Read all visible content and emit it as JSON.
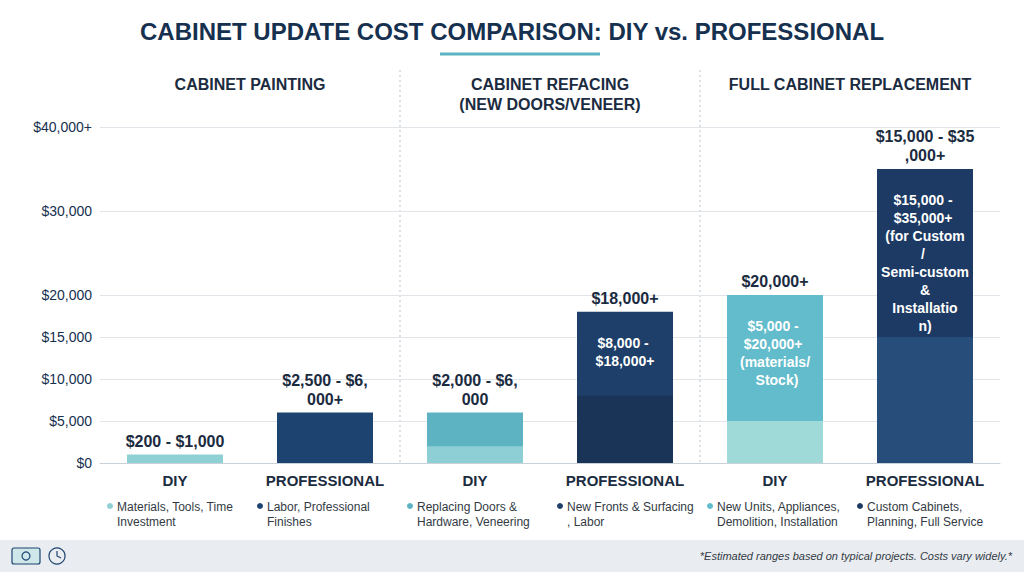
{
  "chart_data": {
    "type": "bar",
    "title": "CABINET UPDATE COST COMPARISON: DIY vs. PROFESSIONAL",
    "group_titles": [
      "CABINET PAINTING",
      "CABINET REFACING\n(NEW DOORS/VENEER)",
      "FULL CABINET REPLACEMENT"
    ],
    "categories": [
      "DIY",
      "PROFESSIONAL",
      "DIY",
      "PROFESSIONAL",
      "DIY",
      "PROFESSIONAL"
    ],
    "values": [
      1000,
      6000,
      6000,
      18000,
      20000,
      35000
    ],
    "value_labels": [
      "$200 - $1,000",
      "$2,500 - $6,000+",
      "$2,000 - $6,000",
      "$18,000+",
      "$20,000+",
      "$15,000 - $35,000+"
    ],
    "base_values": [
      200,
      2500,
      2000,
      8000,
      5000,
      15000
    ],
    "inner_labels": [
      null,
      null,
      null,
      "$8,000 - $18,000+",
      "$5,000 - $20,000+ (materials/ Stock)",
      "$15,000 - $35,000+ (for Custom/ Semi-custom & Installation)"
    ],
    "colors": [
      "#8fd0d4",
      "#1d4471",
      "#5db3c2",
      "#1e3f6a",
      "#62bccb",
      "#1c3a63"
    ],
    "base_colors": [
      "#8fd0d4",
      "#1d4471",
      "#8dcfd5",
      "#193456",
      "#9fdad9",
      "#274e7a"
    ],
    "notes": [
      "Materials, Tools, Time Investment",
      "Labor, Professional Finishes",
      "Replacing Doors & Hardware, Veneering",
      "New Fronts & Surfacing, Labor",
      "New Units, Appliances, Demolition, Installation",
      "Custom Cabinets, Planning, Full Service"
    ],
    "footnote": "*Estimated ranges based on typical projects. Costs vary widely.*",
    "ylim": [
      0,
      40000
    ],
    "yticks": [
      {
        "value": 0,
        "label": "$0"
      },
      {
        "value": 5000,
        "label": "$5,000"
      },
      {
        "value": 10000,
        "label": "$10,000"
      },
      {
        "value": 15000,
        "label": "$15,000"
      },
      {
        "value": 20000,
        "label": "$20,000"
      },
      {
        "value": 30000,
        "label": "$30,000"
      },
      {
        "value": 40000,
        "label": "$40,000+"
      }
    ],
    "grid": true,
    "data_labels": true
  }
}
